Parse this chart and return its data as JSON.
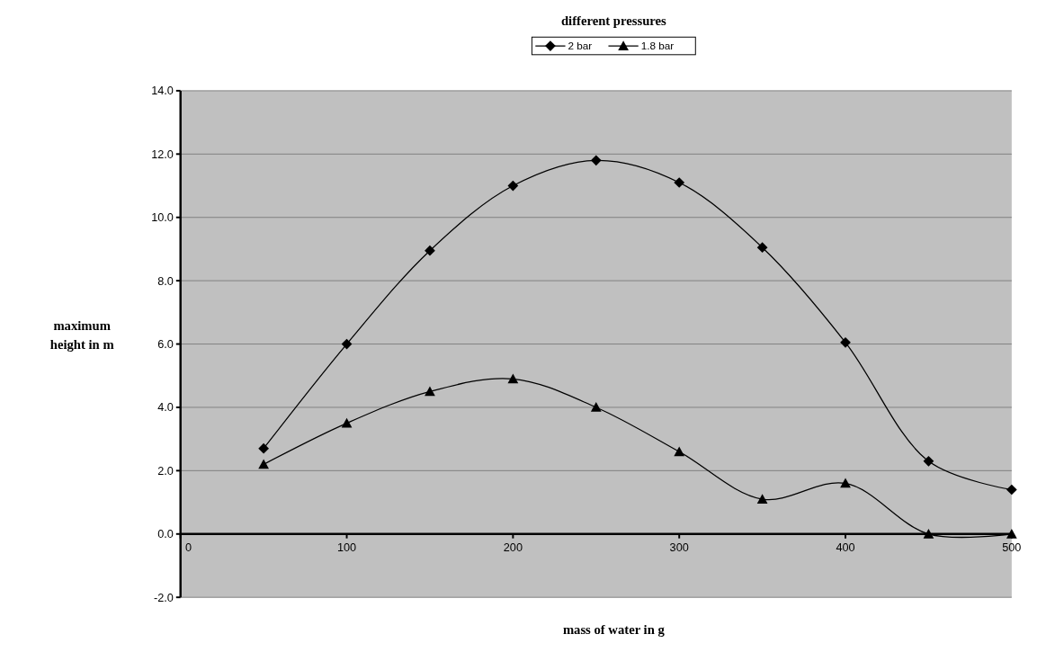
{
  "chart_data": {
    "type": "line",
    "title": "different pressures",
    "xlabel": "mass of water in g",
    "ylabel": "maximum height in m",
    "x": [
      50,
      100,
      150,
      200,
      250,
      300,
      350,
      400,
      450,
      500
    ],
    "series": [
      {
        "name": "2 bar",
        "color": "#000000",
        "marker": "diamond",
        "values": [
          2.7,
          6.0,
          8.95,
          11.0,
          11.8,
          11.1,
          9.05,
          6.05,
          2.3,
          1.4
        ]
      },
      {
        "name": "1.8 bar",
        "color": "#000000",
        "marker": "triangle",
        "values": [
          2.2,
          3.5,
          4.5,
          4.9,
          4.0,
          2.6,
          1.1,
          1.6,
          0,
          0
        ]
      }
    ],
    "xlim": [
      0,
      500
    ],
    "xticks": [
      0,
      100,
      200,
      300,
      400,
      500
    ],
    "ylim": [
      -2,
      14
    ],
    "yticks": [
      {
        "value": -2,
        "label": "-2.0"
      },
      {
        "value": 0,
        "label": "0.0"
      },
      {
        "value": 2,
        "label": "2.0"
      },
      {
        "value": 4,
        "label": "4.0"
      },
      {
        "value": 6,
        "label": "6.0"
      },
      {
        "value": 8,
        "label": "8.0"
      },
      {
        "value": 10,
        "label": "10.0"
      },
      {
        "value": 12,
        "label": "12.0"
      },
      {
        "value": 14,
        "label": "14.0"
      }
    ],
    "grid": "y",
    "legend": "top",
    "line_style": "solid"
  }
}
